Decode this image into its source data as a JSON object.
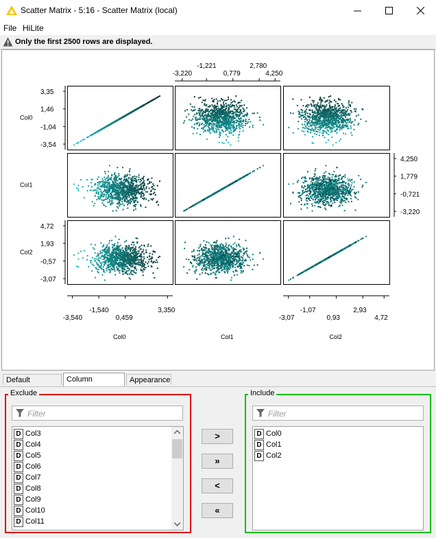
{
  "window": {
    "title": "Scatter Matrix - 5:16 - Scatter Matrix (local)",
    "minimize": "—",
    "maximize": "☐",
    "close": "✕"
  },
  "menu": {
    "file": "File",
    "hilite": "HiLite"
  },
  "warning": {
    "text": "Only the first 2500 rows are displayed."
  },
  "tabs": [
    {
      "label": "Default Settings"
    },
    {
      "label": "Column Selection"
    },
    {
      "label": "Appearance"
    }
  ],
  "exclude": {
    "legend": "Exclude",
    "filter_placeholder": "Filter",
    "items": [
      "Col3",
      "Col4",
      "Col5",
      "Col6",
      "Col7",
      "Col8",
      "Col9",
      "Col10",
      "Col11"
    ]
  },
  "include": {
    "legend": "Include",
    "filter_placeholder": "Filter",
    "items": [
      "Col0",
      "Col1",
      "Col2"
    ]
  },
  "move_buttons": {
    "add": ">",
    "add_all": "»",
    "remove": "<",
    "remove_all": "«"
  },
  "type_badge": "D",
  "colors": {
    "point_light": "#17c7c7",
    "point_dark": "#0a2f2f",
    "exclude_border": "#e00000",
    "include_border": "#00c000",
    "warning_icon": "#555555"
  },
  "chart_data": {
    "type": "scatter-matrix",
    "variables": [
      "Col0",
      "Col1",
      "Col2"
    ],
    "point_count": 2500,
    "axes": {
      "Col0": {
        "range": [
          -3.54,
          3.35
        ],
        "left_ticks": [
          "3,35",
          "1,46",
          "-1,04",
          "-3,54"
        ],
        "bottom_ticks": [
          "-1,540",
          "3,350",
          "-3,540",
          "0,459"
        ]
      },
      "Col1": {
        "range": [
          -3.22,
          4.25
        ],
        "top_ticks": [
          "-1,221",
          "2,780",
          "-3,220",
          "0,779",
          "4,250"
        ],
        "right_ticks": [
          "4,250",
          "1,779",
          "-0,721",
          "-3,220"
        ]
      },
      "Col2": {
        "range": [
          -3.07,
          4.72
        ],
        "left_ticks": [
          "4,72",
          "1,93",
          "-0,57",
          "-3,07"
        ],
        "bottom_ticks": [
          "-1,07",
          "2,93",
          "-3,07",
          "0,93",
          "4,72"
        ]
      }
    },
    "xlabels": [
      "Col0",
      "Col1",
      "Col2"
    ],
    "ylabels": [
      "Col0",
      "Col1",
      "Col2"
    ],
    "diagonal": "identity line",
    "off_diagonal": "independent normal clouds, color by Col0"
  }
}
